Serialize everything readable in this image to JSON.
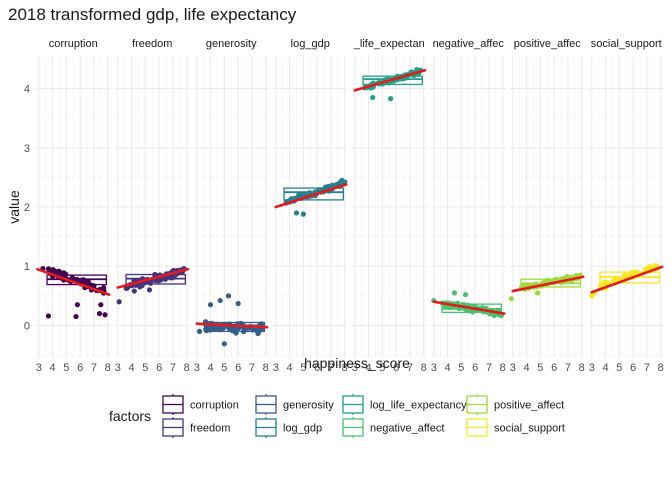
{
  "chart_data": {
    "type": "scatter",
    "title": "2018 transformed gdp, life expectancy",
    "xlabel": "happiness_score",
    "ylabel": "value",
    "xlim": [
      2.8,
      8.2
    ],
    "ylim": [
      -0.55,
      4.55
    ],
    "x_ticks": [
      "3",
      "4",
      "5",
      "6",
      "7",
      "8"
    ],
    "y_ticks": [
      "0",
      "1",
      "2",
      "3",
      "4"
    ],
    "grid": true,
    "legend_title": "factors",
    "legend_position": "bottom",
    "panels": [
      {
        "name": "corruption",
        "display_label": "corruption",
        "color": "#440154",
        "box": {
          "q1": 0.69,
          "median": 0.78,
          "q3": 0.85
        },
        "fit": [
          [
            2.9,
            0.95
          ],
          [
            8.1,
            0.52
          ]
        ],
        "center": 0.78,
        "spread": 0.09,
        "extras": [
          [
            7.4,
            0.2
          ],
          [
            7.8,
            0.18
          ],
          [
            5.7,
            0.15
          ],
          [
            5.8,
            0.35
          ],
          [
            3.7,
            0.16
          ],
          [
            3.3,
            0.96
          ],
          [
            7.5,
            0.35
          ]
        ]
      },
      {
        "name": "freedom",
        "display_label": "freedom",
        "color": "#46337E",
        "box": {
          "q1": 0.7,
          "median": 0.79,
          "q3": 0.86
        },
        "fit": [
          [
            3.0,
            0.64
          ],
          [
            8.1,
            0.95
          ]
        ],
        "center": 0.8,
        "spread": 0.09,
        "extras": [
          [
            3.1,
            0.4
          ],
          [
            4.2,
            0.58
          ],
          [
            5.3,
            0.6
          ],
          [
            7.8,
            0.96
          ]
        ]
      },
      {
        "name": "generosity",
        "display_label": "generosity",
        "color": "#365C8D",
        "box": {
          "q1": -0.1,
          "median": 0.0,
          "q3": 0.05
        },
        "fit": [
          [
            3.0,
            0.03
          ],
          [
            8.1,
            -0.03
          ]
        ],
        "center": -0.05,
        "spread": 0.12,
        "extras": [
          [
            5.3,
            0.5
          ],
          [
            4.0,
            0.35
          ],
          [
            4.7,
            0.42
          ],
          [
            3.2,
            -0.1
          ],
          [
            6.0,
            0.37
          ],
          [
            5.0,
            -0.31
          ]
        ]
      },
      {
        "name": "log_gdp",
        "display_label": "log_gdp",
        "color": "#277F8E",
        "box": {
          "q1": 2.12,
          "median": 2.25,
          "q3": 2.32
        },
        "fit": [
          [
            3.0,
            2.0
          ],
          [
            8.1,
            2.38
          ]
        ],
        "center": 0.0,
        "spread": 0.06,
        "extras": [
          [
            4.5,
            1.9
          ],
          [
            5.0,
            1.88
          ],
          [
            7.8,
            2.45
          ],
          [
            8.0,
            2.42
          ]
        ]
      },
      {
        "name": "log_life_expectancy",
        "display_label": "_life_expectan",
        "color": "#1FA187",
        "box": {
          "q1": 4.07,
          "median": 4.16,
          "q3": 4.21
        },
        "fit": [
          [
            3.0,
            3.97
          ],
          [
            8.1,
            4.31
          ]
        ],
        "center": 0.0,
        "spread": 0.05,
        "extras": [
          [
            4.3,
            3.85
          ],
          [
            5.6,
            3.83
          ],
          [
            7.5,
            4.32
          ]
        ]
      },
      {
        "name": "negative_affect",
        "display_label": "negative_affec",
        "color": "#4AC16D",
        "box": {
          "q1": 0.22,
          "median": 0.28,
          "q3": 0.36
        },
        "fit": [
          [
            3.0,
            0.4
          ],
          [
            8.1,
            0.2
          ]
        ],
        "center": 0.0,
        "spread": 0.07,
        "extras": [
          [
            3.0,
            0.42
          ],
          [
            4.5,
            0.55
          ],
          [
            5.3,
            0.52
          ],
          [
            7.9,
            0.17
          ]
        ]
      },
      {
        "name": "positive_affect",
        "display_label": "positive_affec",
        "color": "#9FDA3A",
        "box": {
          "q1": 0.65,
          "median": 0.71,
          "q3": 0.78
        },
        "fit": [
          [
            3.0,
            0.58
          ],
          [
            8.1,
            0.82
          ]
        ],
        "center": 0.0,
        "spread": 0.06,
        "extras": [
          [
            2.9,
            0.45
          ],
          [
            4.8,
            0.55
          ],
          [
            7.9,
            0.85
          ]
        ]
      },
      {
        "name": "social_support",
        "display_label": "social_support",
        "color": "#FDE725",
        "box": {
          "q1": 0.72,
          "median": 0.82,
          "q3": 0.9
        },
        "fit": [
          [
            3.0,
            0.56
          ],
          [
            8.1,
            0.99
          ]
        ],
        "center": 0.0,
        "spread": 0.08,
        "extras": [
          [
            3.0,
            0.5
          ],
          [
            3.2,
            0.55
          ],
          [
            4.0,
            0.62
          ],
          [
            7.8,
            0.97
          ]
        ]
      }
    ],
    "legend_entries": [
      {
        "label": "corruption",
        "color": "#440154"
      },
      {
        "label": "freedom",
        "color": "#46337E"
      },
      {
        "label": "generosity",
        "color": "#365C8D"
      },
      {
        "label": "log_gdp",
        "color": "#277F8E"
      },
      {
        "label": "log_life_expectancy",
        "color": "#1FA187"
      },
      {
        "label": "negative_affect",
        "color": "#4AC16D"
      },
      {
        "label": "positive_affect",
        "color": "#9FDA3A"
      },
      {
        "label": "social_support",
        "color": "#FDE725"
      }
    ],
    "fit_line_color": "#E41A1C"
  }
}
